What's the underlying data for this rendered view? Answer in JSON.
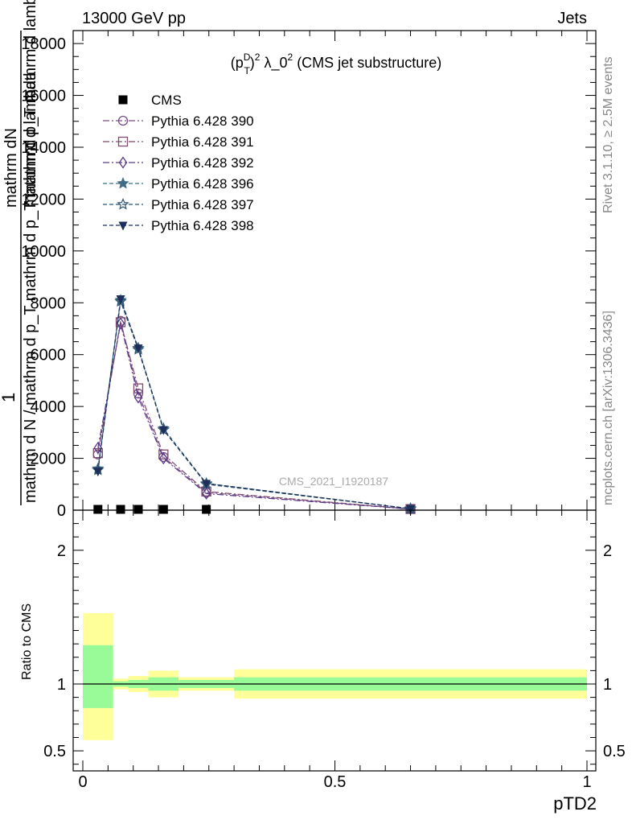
{
  "header": {
    "left": "13000 GeV pp",
    "right": "Jets"
  },
  "side": {
    "rivet": "Rivet 3.1.10, ≥ 2.5M events",
    "mcplots": "mcplots.cern.ch [arXiv:1306.3436]"
  },
  "ylabel_upper": {
    "one": "1",
    "numerator": "mathrm d^{2}N",
    "denominator_a": "mathrm d N / mathrm d p_T mathrm d p_T mathrm d lambda",
    "line_a": "mathrm dN",
    "line_b": "mathrm d p_T mathrm d lambda"
  },
  "ylabel_lower": "Ratio to CMS",
  "watermark": "CMS_2021_I1920187",
  "colors": {
    "ratio_inner": "#98fb98",
    "ratio_outer": "#ffff99",
    "cms": "#000000"
  },
  "chart_data": [
    {
      "type": "line",
      "title": "(p_T^D)^2 λ_0^2 (CMS jet substructure)",
      "title_parts": {
        "pre": "(p",
        "sup1": "D",
        "sub1": "T",
        "close": ")",
        "sup2": "2",
        "mid": " λ_0",
        "sup3": "2",
        "post": " (CMS jet substructure)"
      },
      "xlabel": "pTD2",
      "xlim": [
        0,
        1
      ],
      "ylim": [
        0,
        18500
      ],
      "yticks": [
        0,
        2000,
        4000,
        6000,
        8000,
        10000,
        12000,
        14000,
        16000,
        18000
      ],
      "ytick_labels": [
        "0",
        "2000",
        "4000",
        "6000",
        "8000",
        "10000",
        "12000",
        "14000",
        "16000",
        "18000"
      ],
      "legend_position": "top-left",
      "x": [
        0.03,
        0.075,
        0.11,
        0.16,
        0.245,
        0.65
      ],
      "series": [
        {
          "name": "CMS",
          "marker": "square-filled",
          "color": "#000000",
          "values": [
            20,
            20,
            20,
            20,
            20,
            20
          ]
        },
        {
          "name": "Pythia 6.428 390",
          "marker": "circle-open",
          "color": "#7a4f88",
          "values": [
            2150,
            7300,
            4500,
            2050,
            680,
            45
          ]
        },
        {
          "name": "Pythia 6.428 391",
          "marker": "square-open",
          "color": "#7d4b6c",
          "values": [
            2200,
            7250,
            4700,
            2150,
            720,
            45
          ]
        },
        {
          "name": "Pythia 6.428 392",
          "marker": "diamond-open",
          "color": "#5a3a8a",
          "values": [
            2400,
            7200,
            4350,
            2000,
            640,
            40
          ]
        },
        {
          "name": "Pythia 6.428 396",
          "marker": "star-filled",
          "color": "#3f6d86",
          "values": [
            1600,
            8100,
            6250,
            3150,
            1030,
            55
          ]
        },
        {
          "name": "Pythia 6.428 397",
          "marker": "star-open",
          "color": "#2f5575",
          "values": [
            1550,
            8050,
            6200,
            3100,
            1000,
            55
          ]
        },
        {
          "name": "Pythia 6.428 398",
          "marker": "triangle-down-filled",
          "color": "#1d2f5a",
          "values": [
            1500,
            8150,
            6250,
            3100,
            1030,
            55
          ]
        }
      ]
    },
    {
      "type": "area",
      "title": "",
      "ylabel": "Ratio to CMS",
      "xlabel": "pTD2",
      "xlim": [
        0,
        1
      ],
      "ylim": [
        0.35,
        2.3
      ],
      "yticks": [
        0.5,
        1,
        2
      ],
      "ytick_labels": [
        "0.5",
        "1",
        "2"
      ],
      "xticks": [
        0,
        0.5,
        1
      ],
      "xtick_labels": [
        "0",
        "0.5",
        "1"
      ],
      "bins": [
        {
          "x0": 0.0,
          "x1": 0.06,
          "inner": [
            0.82,
            1.29
          ],
          "outer": [
            0.58,
            1.53
          ]
        },
        {
          "x0": 0.06,
          "x1": 0.09,
          "inner": [
            0.98,
            1.02
          ],
          "outer": [
            0.96,
            1.04
          ]
        },
        {
          "x0": 0.09,
          "x1": 0.13,
          "inner": [
            0.97,
            1.03
          ],
          "outer": [
            0.94,
            1.06
          ]
        },
        {
          "x0": 0.13,
          "x1": 0.19,
          "inner": [
            0.95,
            1.05
          ],
          "outer": [
            0.9,
            1.1
          ]
        },
        {
          "x0": 0.19,
          "x1": 0.3,
          "inner": [
            0.97,
            1.03
          ],
          "outer": [
            0.95,
            1.05
          ]
        },
        {
          "x0": 0.3,
          "x1": 1.0,
          "inner": [
            0.95,
            1.05
          ],
          "outer": [
            0.89,
            1.11
          ]
        }
      ]
    }
  ]
}
